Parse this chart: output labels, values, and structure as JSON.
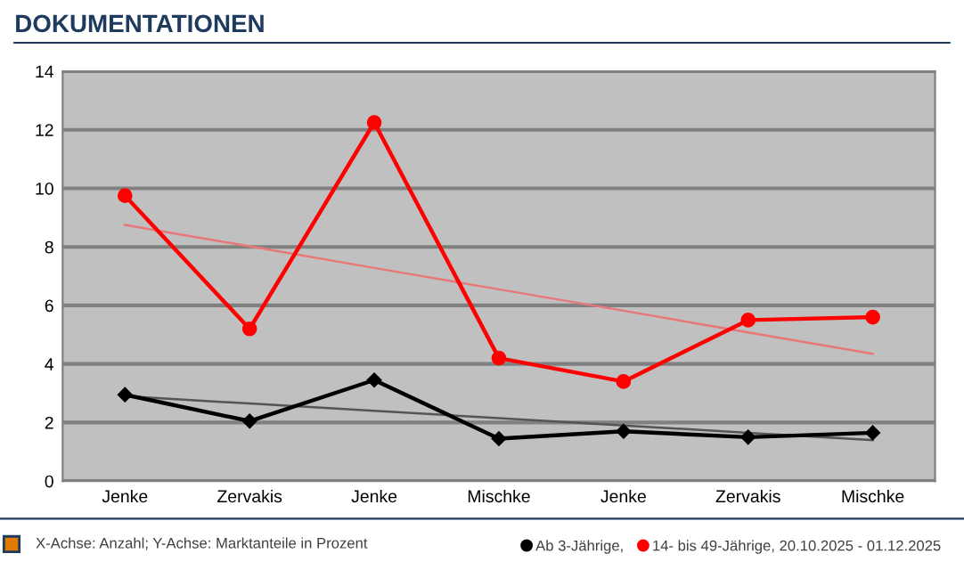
{
  "chart_data": {
    "type": "line",
    "title": "DOKUMENTATIONEN",
    "categories": [
      "Jenke",
      "Zervakis",
      "Jenke",
      "Mischke",
      "Jenke",
      "Zervakis",
      "Mischke"
    ],
    "series": [
      {
        "name": "Ab 3-Jährige,",
        "color": "#000000",
        "marker": "diamond",
        "values": [
          2.95,
          2.05,
          3.45,
          1.45,
          1.7,
          1.5,
          1.65
        ]
      },
      {
        "name": "14- bis 49-Jährige, 20.10.2025 - 01.12.2025",
        "color": "#ff0000",
        "marker": "circle",
        "values": [
          9.75,
          5.2,
          12.25,
          4.2,
          3.4,
          5.5,
          5.6
        ]
      },
      {
        "color": "#555555",
        "marker": "none",
        "values": [
          2.9,
          2.65,
          2.4,
          2.15,
          1.9,
          1.65,
          1.4
        ]
      },
      {
        "color": "#e87878",
        "marker": "none",
        "values": [
          8.75,
          8.02,
          7.28,
          6.55,
          5.82,
          5.08,
          4.35
        ]
      }
    ],
    "ylim": [
      0,
      14
    ],
    "yticks": [
      0,
      2,
      4,
      6,
      8,
      10,
      12,
      14
    ],
    "grid": "y",
    "legend": "bottom",
    "annotations": [
      "X-Achse: Anzahl; Y-Achse: Marktanteile in Prozent"
    ]
  }
}
